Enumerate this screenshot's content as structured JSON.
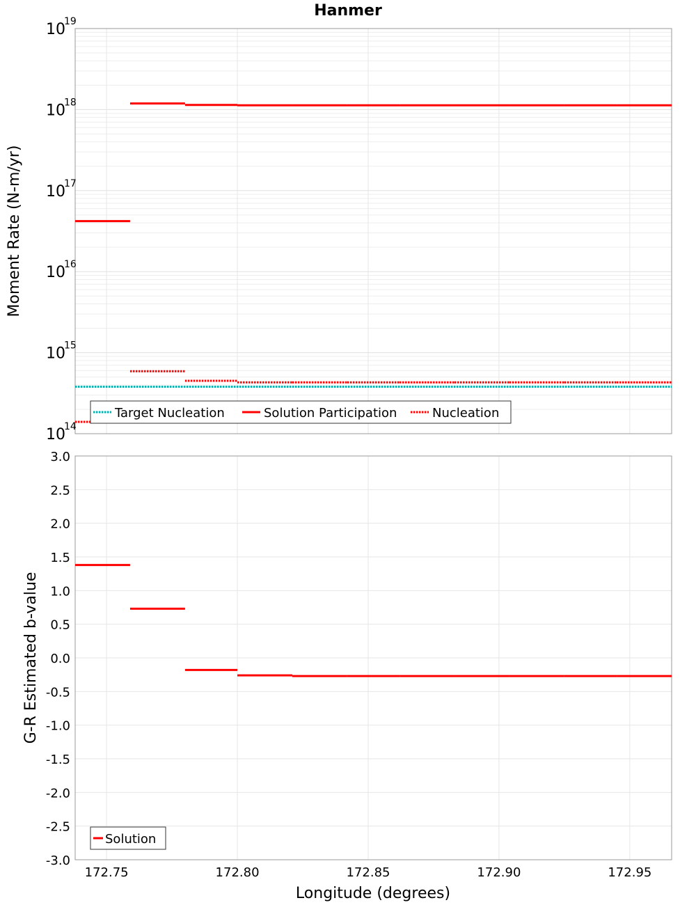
{
  "chart_data": [
    {
      "type": "line",
      "title": "Hanmer",
      "xlabel": "",
      "ylabel": "Moment Rate (N-m/yr)",
      "yscale": "log",
      "ylim": [
        100000000000000.0,
        1e+19
      ],
      "xlim": [
        172.738,
        172.966
      ],
      "y_tick_base": "10",
      "y_ticks": [
        {
          "value": 100000000000000.0,
          "exp": "14"
        },
        {
          "value": 1000000000000000.0,
          "exp": "15"
        },
        {
          "value": 1e+16,
          "exp": "16"
        },
        {
          "value": 1e+17,
          "exp": "17"
        },
        {
          "value": 1e+18,
          "exp": "18"
        },
        {
          "value": 1e+19,
          "exp": "19"
        }
      ],
      "legend": {
        "placement": "bottom-left",
        "entries": [
          "Target Nucleation",
          "Solution Participation",
          "Nucleation"
        ]
      },
      "series": [
        {
          "name": "Target Nucleation",
          "style": "dotted",
          "color": "#00b3b3",
          "segments": [
            [
              172.738,
              172.966,
              380000000000000.0
            ]
          ]
        },
        {
          "name": "Solution Participation",
          "style": "solid",
          "color": "#ff0000",
          "segments": [
            [
              172.738,
              172.759,
              4.2e+16
            ],
            [
              172.759,
              172.78,
              1.19e+18
            ],
            [
              172.78,
              172.8,
              1.14e+18
            ],
            [
              172.8,
              172.821,
              1.13e+18
            ],
            [
              172.821,
              172.842,
              1.13e+18
            ],
            [
              172.842,
              172.862,
              1.13e+18
            ],
            [
              172.862,
              172.883,
              1.13e+18
            ],
            [
              172.883,
              172.904,
              1.13e+18
            ],
            [
              172.904,
              172.925,
              1.13e+18
            ],
            [
              172.925,
              172.945,
              1.13e+18
            ],
            [
              172.945,
              172.966,
              1.13e+18
            ]
          ]
        },
        {
          "name": "Nucleation",
          "style": "dotted",
          "color": "#ff0000",
          "segments": [
            [
              172.738,
              172.759,
              140000000000000.0
            ],
            [
              172.759,
              172.78,
              590000000000000.0
            ],
            [
              172.78,
              172.8,
              450000000000000.0
            ],
            [
              172.8,
              172.821,
              430000000000000.0
            ],
            [
              172.821,
              172.842,
              430000000000000.0
            ],
            [
              172.842,
              172.862,
              430000000000000.0
            ],
            [
              172.862,
              172.883,
              430000000000000.0
            ],
            [
              172.883,
              172.904,
              430000000000000.0
            ],
            [
              172.904,
              172.925,
              430000000000000.0
            ],
            [
              172.925,
              172.945,
              430000000000000.0
            ],
            [
              172.945,
              172.966,
              430000000000000.0
            ]
          ]
        }
      ]
    },
    {
      "type": "line",
      "title": "",
      "xlabel": "Longitude (degrees)",
      "ylabel": "G-R Estimated b-value",
      "yscale": "linear",
      "ylim": [
        -3.0,
        3.0
      ],
      "xlim": [
        172.738,
        172.966
      ],
      "y_ticks": [
        "3.0",
        "2.5",
        "2.0",
        "1.5",
        "1.0",
        "0.5",
        "0.0",
        "-0.5",
        "-1.0",
        "-1.5",
        "-2.0",
        "-2.5",
        "-3.0"
      ],
      "x_ticks": [
        "172.75",
        "172.80",
        "172.85",
        "172.90",
        "172.95"
      ],
      "legend": {
        "placement": "bottom-left",
        "entries": [
          "Solution"
        ]
      },
      "series": [
        {
          "name": "Solution",
          "style": "solid",
          "color": "#ff0000",
          "segments": [
            [
              172.738,
              172.759,
              1.38
            ],
            [
              172.759,
              172.78,
              0.73
            ],
            [
              172.78,
              172.8,
              -0.18
            ],
            [
              172.8,
              172.821,
              -0.26
            ],
            [
              172.821,
              172.842,
              -0.27
            ],
            [
              172.842,
              172.862,
              -0.27
            ],
            [
              172.862,
              172.883,
              -0.27
            ],
            [
              172.883,
              172.904,
              -0.27
            ],
            [
              172.904,
              172.925,
              -0.27
            ],
            [
              172.925,
              172.945,
              -0.27
            ],
            [
              172.945,
              172.966,
              -0.27
            ]
          ]
        }
      ]
    }
  ]
}
